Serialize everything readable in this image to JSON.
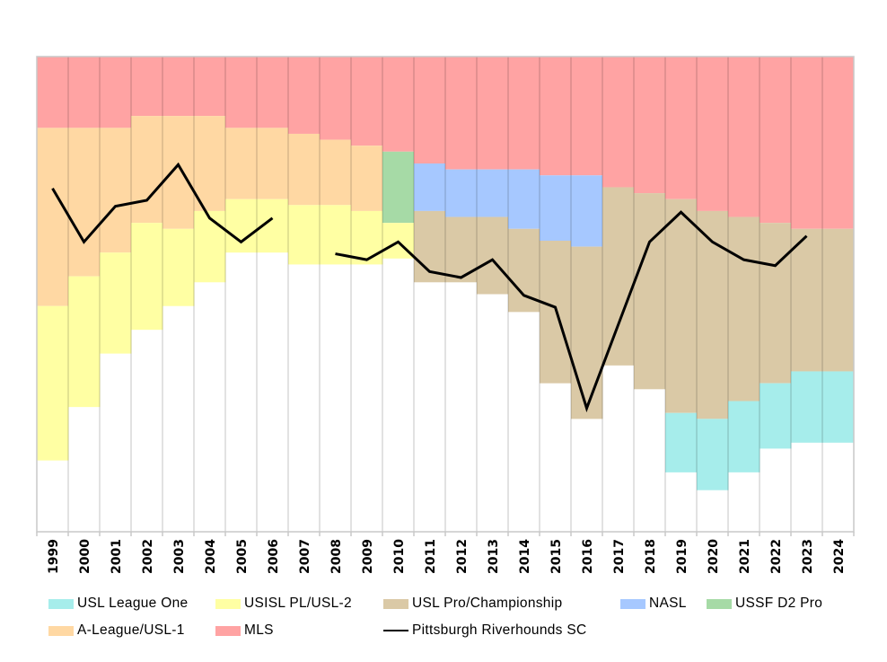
{
  "chart_data": {
    "type": "area",
    "subtype": "stacked-step-area-with-line",
    "title": "",
    "xlabel": "",
    "ylabel": "",
    "unit": "teams (stacked from top); line = Pittsburgh overall pyramid rank",
    "ylim": [
      0,
      80
    ],
    "y_inverted": true,
    "grid": "vertical",
    "legend_position": "bottom",
    "categories": [
      "1999",
      "2000",
      "2001",
      "2002",
      "2003",
      "2004",
      "2005",
      "2006",
      "2007",
      "2008",
      "2009",
      "2010",
      "2011",
      "2012",
      "2013",
      "2014",
      "2015",
      "2016",
      "2017",
      "2018",
      "2019",
      "2020",
      "2021",
      "2022",
      "2023",
      "2024"
    ],
    "series": [
      {
        "key": "mls",
        "name": "MLS",
        "color": "#FFA3A3",
        "values": [
          12,
          12,
          12,
          10,
          10,
          10,
          12,
          12,
          13,
          14,
          15,
          16,
          18,
          19,
          19,
          19,
          20,
          20,
          22,
          23,
          24,
          26,
          27,
          28,
          29,
          29
        ]
      },
      {
        "key": "aleague",
        "name": "A-League/USL-1",
        "color": "#FFD8A3",
        "values": [
          30,
          25,
          21,
          18,
          19,
          16,
          12,
          12,
          12,
          11,
          11,
          0,
          0,
          0,
          0,
          0,
          0,
          0,
          0,
          0,
          0,
          0,
          0,
          0,
          0,
          0
        ]
      },
      {
        "key": "nasl",
        "name": "NASL",
        "color": "#A6C8FF",
        "values": [
          0,
          0,
          0,
          0,
          0,
          0,
          0,
          0,
          0,
          0,
          0,
          0,
          8,
          8,
          8,
          10,
          11,
          12,
          0,
          0,
          0,
          0,
          0,
          0,
          0,
          0
        ]
      },
      {
        "key": "d2",
        "name": "USSF D2 Pro",
        "color": "#A6DAA6",
        "values": [
          0,
          0,
          0,
          0,
          0,
          0,
          0,
          0,
          0,
          0,
          0,
          12,
          0,
          0,
          0,
          0,
          0,
          0,
          0,
          0,
          0,
          0,
          0,
          0,
          0,
          0
        ]
      },
      {
        "key": "uslpro",
        "name": "USL Pro/Championship",
        "color": "#DAC9A6",
        "values": [
          0,
          0,
          0,
          0,
          0,
          0,
          0,
          0,
          0,
          0,
          0,
          0,
          12,
          11,
          13,
          14,
          24,
          29,
          30,
          33,
          36,
          35,
          31,
          27,
          24,
          24
        ]
      },
      {
        "key": "usisl",
        "name": "USISL PL/USL-2",
        "color": "#FFFFA3",
        "values": [
          26,
          22,
          17,
          18,
          13,
          12,
          9,
          9,
          10,
          10,
          9,
          6,
          0,
          0,
          0,
          0,
          0,
          0,
          0,
          0,
          0,
          0,
          0,
          0,
          0,
          0
        ]
      },
      {
        "key": "l1",
        "name": "USL League One",
        "color": "#A6EDEB",
        "values": [
          0,
          0,
          0,
          0,
          0,
          0,
          0,
          0,
          0,
          0,
          0,
          0,
          0,
          0,
          0,
          0,
          0,
          0,
          0,
          0,
          10,
          12,
          12,
          11,
          12,
          12
        ]
      }
    ],
    "line": {
      "name": "Pittsburgh Riverhounds SC",
      "color": "#000000",
      "values": [
        22,
        31,
        25,
        24,
        18,
        27,
        31,
        27,
        null,
        33,
        34,
        31,
        36,
        37,
        34,
        40,
        42,
        59,
        45,
        31,
        26,
        31,
        34,
        35,
        30,
        null
      ]
    }
  },
  "legend": {
    "rows": [
      [
        {
          "key": "l1",
          "label": "USL League One",
          "kind": "swatch",
          "color": "#A6EDEB"
        },
        {
          "key": "usisl",
          "label": "USISL PL/USL-2",
          "kind": "swatch",
          "color": "#FFFFA3"
        },
        {
          "key": "uslpro",
          "label": "USL Pro/Championship",
          "kind": "swatch",
          "color": "#DAC9A6"
        },
        {
          "key": "nasl",
          "label": "NASL",
          "kind": "swatch",
          "color": "#A6C8FF"
        },
        {
          "key": "d2",
          "label": "USSF D2 Pro",
          "kind": "swatch",
          "color": "#A6DAA6"
        }
      ],
      [
        {
          "key": "aleague",
          "label": "A-League/USL-1",
          "kind": "swatch",
          "color": "#FFD8A3"
        },
        {
          "key": "mls",
          "label": "MLS",
          "kind": "swatch",
          "color": "#FFA3A3"
        },
        {
          "key": "team",
          "label": "Pittsburgh Riverhounds SC",
          "kind": "line",
          "color": "#000000"
        }
      ]
    ]
  }
}
